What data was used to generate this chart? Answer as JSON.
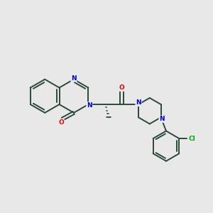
{
  "background_color": "#e8e8e8",
  "bond_color": "#2a4a3a",
  "N_color": "#0000ee",
  "O_color": "#ee0000",
  "Cl_color": "#00aa00",
  "figsize": [
    3.0,
    3.0
  ],
  "dpi": 100,
  "xlim": [
    0,
    10
  ],
  "ylim": [
    0,
    10
  ]
}
